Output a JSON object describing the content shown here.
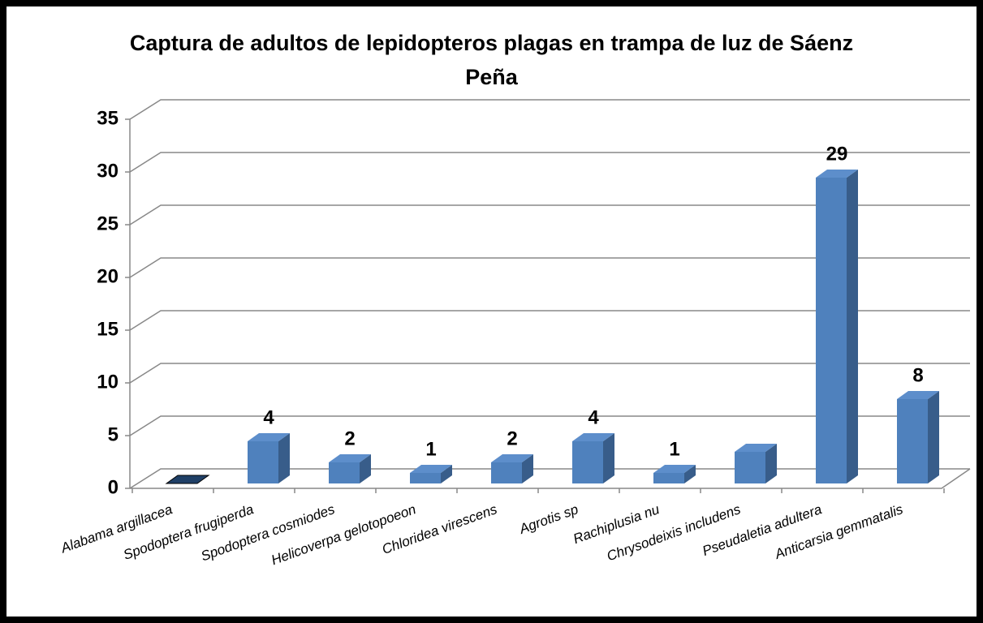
{
  "chart_data": {
    "type": "bar3d",
    "title": "Captura de adultos de lepidopteros plagas en trampa de luz de Sáenz Peña",
    "categories": [
      "Alabama argillacea",
      "Spodoptera frugiperda",
      "Spodoptera cosmiodes",
      "Helicoverpa gelotopoeon",
      "Chloridea virescens",
      "Agrotis sp",
      "Rachiplusia nu",
      "Chrysodeixis includens",
      "Pseudaletia adultera",
      "Anticarsia gemmatalis"
    ],
    "values": [
      0,
      4,
      2,
      1,
      2,
      4,
      1,
      3,
      29,
      8
    ],
    "value_labels": [
      null,
      "4",
      "2",
      "1",
      "2",
      "4",
      "1",
      null,
      "29",
      "8"
    ],
    "color": "#4f81bd",
    "ylim": [
      0,
      35
    ],
    "yticks": [
      0,
      5,
      10,
      15,
      20,
      25,
      30,
      35
    ],
    "grid": true
  }
}
